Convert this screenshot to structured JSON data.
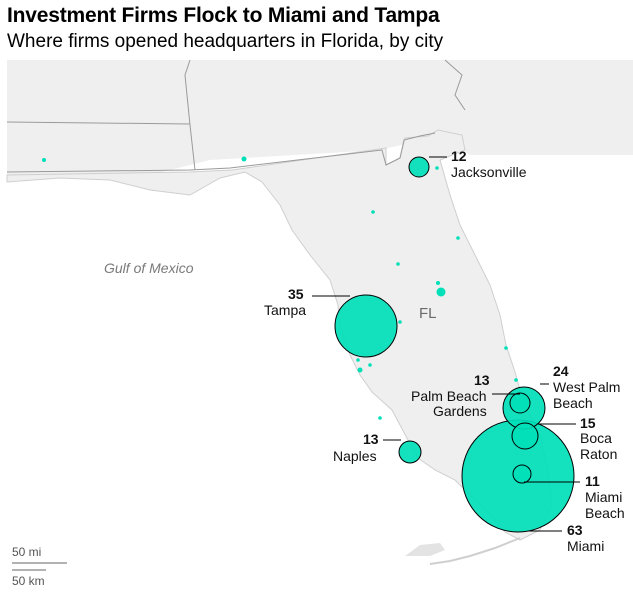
{
  "title": "Investment Firms Flock to Miami and Tampa",
  "subtitle": "Where firms opened headquarters in Florida, by city",
  "map": {
    "water_label": "Gulf of Mexico",
    "state_label": "FL",
    "accent_color": "#00e0b8",
    "land_color": "#efefef",
    "border_color": "#999999"
  },
  "cities": [
    {
      "name": "Jacksonville",
      "count": "12"
    },
    {
      "name": "Tampa",
      "count": "35"
    },
    {
      "name": "Palm Beach Gardens",
      "count": "13"
    },
    {
      "name": "West Palm Beach",
      "count": "24"
    },
    {
      "name": "Boca Raton",
      "count": "15"
    },
    {
      "name": "Naples",
      "count": "13"
    },
    {
      "name": "Miami Beach",
      "count": "11"
    },
    {
      "name": "Miami",
      "count": "63"
    }
  ],
  "labels": {
    "jacksonville": {
      "count": "12",
      "line1": "Jacksonville"
    },
    "tampa": {
      "count": "35",
      "line1": "Tampa"
    },
    "pbg": {
      "count": "13",
      "line1": "Palm Beach",
      "line2": "Gardens"
    },
    "wpb": {
      "count": "24",
      "line1": "West Palm",
      "line2": "Beach"
    },
    "boca": {
      "count": "15",
      "line1": "Boca",
      "line2": "Raton"
    },
    "naples": {
      "count": "13",
      "line1": "Naples"
    },
    "miamibeach": {
      "count": "11",
      "line1": "Miami",
      "line2": "Beach"
    },
    "miami": {
      "count": "63",
      "line1": "Miami"
    }
  },
  "scale": {
    "miles": "50 mi",
    "km": "50 km"
  }
}
